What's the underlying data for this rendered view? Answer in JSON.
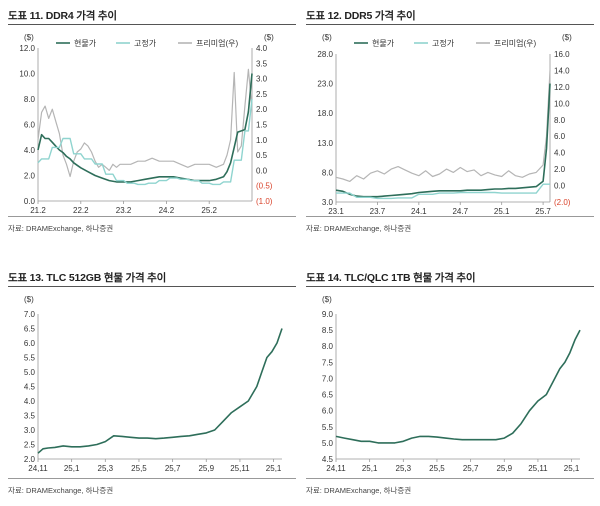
{
  "source_text": "자료: DRAMExchange, 하나증권",
  "colors": {
    "spot": "#2e6e5a",
    "contract": "#8fd4cf",
    "premium": "#b5b5b5",
    "neg": "#d9432b"
  },
  "chart_data": [
    {
      "id": "c1",
      "title": "도표 11. DDR4 가격 추이",
      "type": "line",
      "left_unit": "($)",
      "right_unit": "($)",
      "ylim": [
        0,
        12
      ],
      "y_ticks": [
        "0.0",
        "2.0",
        "4.0",
        "6.0",
        "8.0",
        "10.0",
        "12.0"
      ],
      "y2lim": [
        -1,
        4
      ],
      "y2_ticks": [
        {
          "v": -1.0,
          "label": "(1.0)"
        },
        {
          "v": -0.5,
          "label": "(0.5)"
        },
        {
          "v": 0,
          "label": "0.0"
        },
        {
          "v": 0.5,
          "label": "0.5"
        },
        {
          "v": 1.0,
          "label": "1.0"
        },
        {
          "v": 1.5,
          "label": "1.5"
        },
        {
          "v": 2.0,
          "label": "2.0"
        },
        {
          "v": 2.5,
          "label": "2.5"
        },
        {
          "v": 3.0,
          "label": "3.0"
        },
        {
          "v": 3.5,
          "label": "3.5"
        },
        {
          "v": 4.0,
          "label": "4.0"
        }
      ],
      "xlim": [
        0,
        60
      ],
      "x_ticks": [
        {
          "v": 0,
          "label": "21.2"
        },
        {
          "v": 12,
          "label": "22.2"
        },
        {
          "v": 24,
          "label": "23.2"
        },
        {
          "v": 36,
          "label": "24.2"
        },
        {
          "v": 48,
          "label": "25.2"
        }
      ],
      "series": [
        {
          "name": "현물가",
          "axis": "left",
          "x": [
            0,
            1,
            2,
            3,
            4,
            5,
            6,
            7,
            8,
            9,
            10,
            11,
            12,
            14,
            16,
            18,
            20,
            22,
            24,
            26,
            28,
            30,
            32,
            34,
            36,
            38,
            40,
            42,
            44,
            46,
            48,
            50,
            52,
            53,
            54,
            55,
            56,
            57,
            58,
            59,
            60
          ],
          "y": [
            4.0,
            5.2,
            4.9,
            4.9,
            4.6,
            4.3,
            4.0,
            3.8,
            3.5,
            3.3,
            3.0,
            2.8,
            2.6,
            2.3,
            2.0,
            1.8,
            1.6,
            1.5,
            1.5,
            1.5,
            1.6,
            1.7,
            1.8,
            1.9,
            1.9,
            1.9,
            1.8,
            1.7,
            1.6,
            1.6,
            1.6,
            1.7,
            1.9,
            2.3,
            3.0,
            4.2,
            5.4,
            5.5,
            5.6,
            7.0,
            10.0
          ]
        },
        {
          "name": "고정가",
          "axis": "left",
          "x": [
            0,
            1,
            3,
            4,
            6,
            7,
            9,
            10,
            12,
            13,
            15,
            16,
            18,
            19,
            21,
            22,
            24,
            25,
            27,
            28,
            30,
            31,
            33,
            34,
            36,
            37,
            39,
            40,
            42,
            43,
            45,
            46,
            48,
            49,
            51,
            52,
            54,
            55,
            57,
            58,
            59,
            60
          ],
          "y": [
            3.0,
            3.3,
            3.3,
            4.2,
            4.2,
            4.9,
            4.9,
            3.7,
            3.7,
            3.3,
            3.3,
            2.9,
            2.9,
            2.1,
            2.1,
            1.6,
            1.6,
            1.4,
            1.4,
            1.3,
            1.3,
            1.4,
            1.4,
            1.6,
            1.6,
            1.8,
            1.8,
            1.7,
            1.7,
            1.6,
            1.6,
            1.4,
            1.4,
            1.3,
            1.3,
            1.5,
            1.5,
            3.2,
            3.2,
            5.5,
            5.5,
            8.0
          ]
        },
        {
          "name": "프리미엄(우)",
          "axis": "right",
          "x": [
            0,
            1,
            2,
            3,
            4,
            5,
            6,
            7,
            8,
            9,
            10,
            11,
            12,
            13,
            14,
            15,
            16,
            17,
            18,
            19,
            20,
            21,
            22,
            23,
            24,
            26,
            28,
            30,
            32,
            34,
            36,
            38,
            40,
            42,
            44,
            46,
            48,
            50,
            52,
            53,
            54,
            55,
            56,
            57,
            58,
            59,
            60
          ],
          "y": [
            1.0,
            1.9,
            2.1,
            1.7,
            2.0,
            1.6,
            1.2,
            0.5,
            0.2,
            -0.2,
            0.3,
            0.6,
            0.7,
            0.9,
            0.8,
            0.6,
            0.3,
            0.1,
            0.2,
            0.1,
            0.0,
            0.2,
            0.1,
            0.2,
            0.2,
            0.2,
            0.3,
            0.3,
            0.4,
            0.3,
            0.3,
            0.3,
            0.2,
            0.1,
            0.2,
            0.2,
            0.2,
            0.1,
            0.2,
            0.5,
            1.0,
            3.2,
            0.6,
            0.8,
            2.1,
            3.3,
            2.0
          ]
        }
      ]
    },
    {
      "id": "c2",
      "title": "도표 12. DDR5 가격 추이",
      "type": "line",
      "left_unit": "($)",
      "right_unit": "($)",
      "ylim": [
        3,
        28
      ],
      "y_ticks": [
        "3.0",
        "8.0",
        "13.0",
        "18.0",
        "23.0",
        "28.0"
      ],
      "y2lim": [
        -2,
        16
      ],
      "y2_ticks": [
        {
          "v": -2,
          "label": "(2.0)"
        },
        {
          "v": 0,
          "label": "0.0"
        },
        {
          "v": 2,
          "label": "2.0"
        },
        {
          "v": 4,
          "label": "4.0"
        },
        {
          "v": 6,
          "label": "6.0"
        },
        {
          "v": 8,
          "label": "8.0"
        },
        {
          "v": 10,
          "label": "10.0"
        },
        {
          "v": 12,
          "label": "12.0"
        },
        {
          "v": 14,
          "label": "14.0"
        },
        {
          "v": 16,
          "label": "16.0"
        }
      ],
      "xlim": [
        0,
        31
      ],
      "x_ticks": [
        {
          "v": 0,
          "label": "23.1"
        },
        {
          "v": 6,
          "label": "23.7"
        },
        {
          "v": 12,
          "label": "24.1"
        },
        {
          "v": 18,
          "label": "24.7"
        },
        {
          "v": 24,
          "label": "25.1"
        },
        {
          "v": 30,
          "label": "25.7"
        }
      ],
      "series": [
        {
          "name": "현물가",
          "axis": "left",
          "x": [
            0,
            1,
            2,
            3,
            4,
            5,
            6,
            7,
            8,
            9,
            10,
            11,
            12,
            13,
            14,
            15,
            16,
            17,
            18,
            19,
            20,
            21,
            22,
            23,
            24,
            25,
            26,
            27,
            28,
            29,
            30,
            30.5,
            31
          ],
          "y": [
            5.0,
            4.8,
            4.3,
            4.0,
            3.9,
            3.9,
            3.9,
            4.0,
            4.1,
            4.2,
            4.3,
            4.4,
            4.6,
            4.7,
            4.8,
            4.9,
            4.9,
            4.9,
            4.9,
            5.0,
            5.0,
            5.0,
            5.1,
            5.2,
            5.2,
            5.3,
            5.3,
            5.4,
            5.5,
            5.6,
            6.5,
            12.0,
            23.0
          ]
        },
        {
          "name": "고정가",
          "axis": "left",
          "x": [
            0,
            2,
            3,
            5,
            6,
            8,
            9,
            11,
            12,
            14,
            15,
            17,
            18,
            20,
            21,
            23,
            24,
            26,
            27,
            29,
            30,
            31
          ],
          "y": [
            4.5,
            4.5,
            3.8,
            3.8,
            3.6,
            3.6,
            3.7,
            3.7,
            4.3,
            4.3,
            4.5,
            4.5,
            4.6,
            4.6,
            4.6,
            4.6,
            4.5,
            4.5,
            4.5,
            4.5,
            6.0,
            6.0
          ]
        },
        {
          "name": "프리미엄(우)",
          "axis": "right",
          "x": [
            0,
            1,
            2,
            3,
            4,
            5,
            6,
            7,
            8,
            9,
            10,
            11,
            12,
            13,
            14,
            15,
            16,
            17,
            18,
            19,
            20,
            21,
            22,
            23,
            24,
            25,
            26,
            27,
            28,
            29,
            30,
            30.5,
            31
          ],
          "y": [
            1.0,
            0.8,
            0.5,
            1.2,
            0.8,
            1.5,
            1.8,
            1.4,
            2.0,
            2.3,
            1.9,
            1.5,
            1.2,
            1.8,
            1.1,
            1.4,
            2.0,
            1.6,
            2.2,
            1.7,
            1.9,
            1.2,
            1.6,
            1.3,
            1.1,
            1.8,
            1.2,
            1.0,
            1.4,
            1.6,
            2.5,
            6.0,
            14.0
          ]
        }
      ]
    },
    {
      "id": "c3",
      "title": "도표 13. TLC 512GB 현물 가격 추이",
      "type": "line",
      "left_unit": "($)",
      "ylim": [
        2.0,
        7.0
      ],
      "y_ticks": [
        "2.0",
        "2.5",
        "3.0",
        "3.5",
        "4.0",
        "4.5",
        "5.0",
        "5.5",
        "6.0",
        "6.5",
        "7.0"
      ],
      "xlim": [
        0,
        14.5
      ],
      "x_ticks": [
        {
          "v": 0,
          "label": "24,11"
        },
        {
          "v": 2,
          "label": "25,1"
        },
        {
          "v": 4,
          "label": "25,3"
        },
        {
          "v": 6,
          "label": "25,5"
        },
        {
          "v": 8,
          "label": "25,7"
        },
        {
          "v": 10,
          "label": "25,9"
        },
        {
          "v": 12,
          "label": "25,11"
        },
        {
          "v": 14,
          "label": "25,1"
        }
      ],
      "series": [
        {
          "name": "현물가",
          "axis": "left",
          "x": [
            0,
            0.3,
            0.6,
            1,
            1.5,
            2,
            2.5,
            3,
            3.5,
            4,
            4.5,
            5,
            5.5,
            6,
            6.5,
            7,
            7.5,
            8,
            8.5,
            9,
            9.5,
            10,
            10.5,
            11,
            11.5,
            12,
            12.5,
            13,
            13.3,
            13.6,
            13.9,
            14.2,
            14.5
          ],
          "y": [
            2.2,
            2.35,
            2.38,
            2.4,
            2.45,
            2.42,
            2.42,
            2.45,
            2.5,
            2.6,
            2.8,
            2.78,
            2.75,
            2.72,
            2.72,
            2.7,
            2.72,
            2.75,
            2.78,
            2.8,
            2.85,
            2.9,
            3.0,
            3.3,
            3.6,
            3.8,
            4.0,
            4.5,
            5.0,
            5.5,
            5.7,
            6.0,
            6.5
          ]
        }
      ]
    },
    {
      "id": "c4",
      "title": "도표 14. TLC/QLC 1TB 현물 가격 추이",
      "type": "line",
      "left_unit": "($)",
      "ylim": [
        4.5,
        9.0
      ],
      "y_ticks": [
        "4.5",
        "5.0",
        "5.5",
        "6.0",
        "6.5",
        "7.0",
        "7.5",
        "8.0",
        "8.5",
        "9.0"
      ],
      "xlim": [
        0,
        14.5
      ],
      "x_ticks": [
        {
          "v": 0,
          "label": "24,11"
        },
        {
          "v": 2,
          "label": "25,1"
        },
        {
          "v": 4,
          "label": "25,3"
        },
        {
          "v": 6,
          "label": "25,5"
        },
        {
          "v": 8,
          "label": "25,7"
        },
        {
          "v": 10,
          "label": "25,9"
        },
        {
          "v": 12,
          "label": "25,11"
        },
        {
          "v": 14,
          "label": "25,1"
        }
      ],
      "series": [
        {
          "name": "현물가",
          "axis": "left",
          "x": [
            0,
            0.5,
            1,
            1.5,
            2,
            2.5,
            3,
            3.5,
            4,
            4.5,
            5,
            5.5,
            6,
            6.5,
            7,
            7.5,
            8,
            8.5,
            9,
            9.5,
            10,
            10.5,
            11,
            11.5,
            12,
            12.5,
            13,
            13.3,
            13.6,
            13.9,
            14.2,
            14.5
          ],
          "y": [
            5.2,
            5.15,
            5.1,
            5.05,
            5.05,
            5.0,
            5.0,
            5.0,
            5.05,
            5.15,
            5.2,
            5.2,
            5.18,
            5.15,
            5.12,
            5.1,
            5.1,
            5.1,
            5.1,
            5.1,
            5.15,
            5.3,
            5.6,
            6.0,
            6.3,
            6.5,
            7.0,
            7.3,
            7.5,
            7.8,
            8.2,
            8.5
          ]
        }
      ]
    }
  ]
}
